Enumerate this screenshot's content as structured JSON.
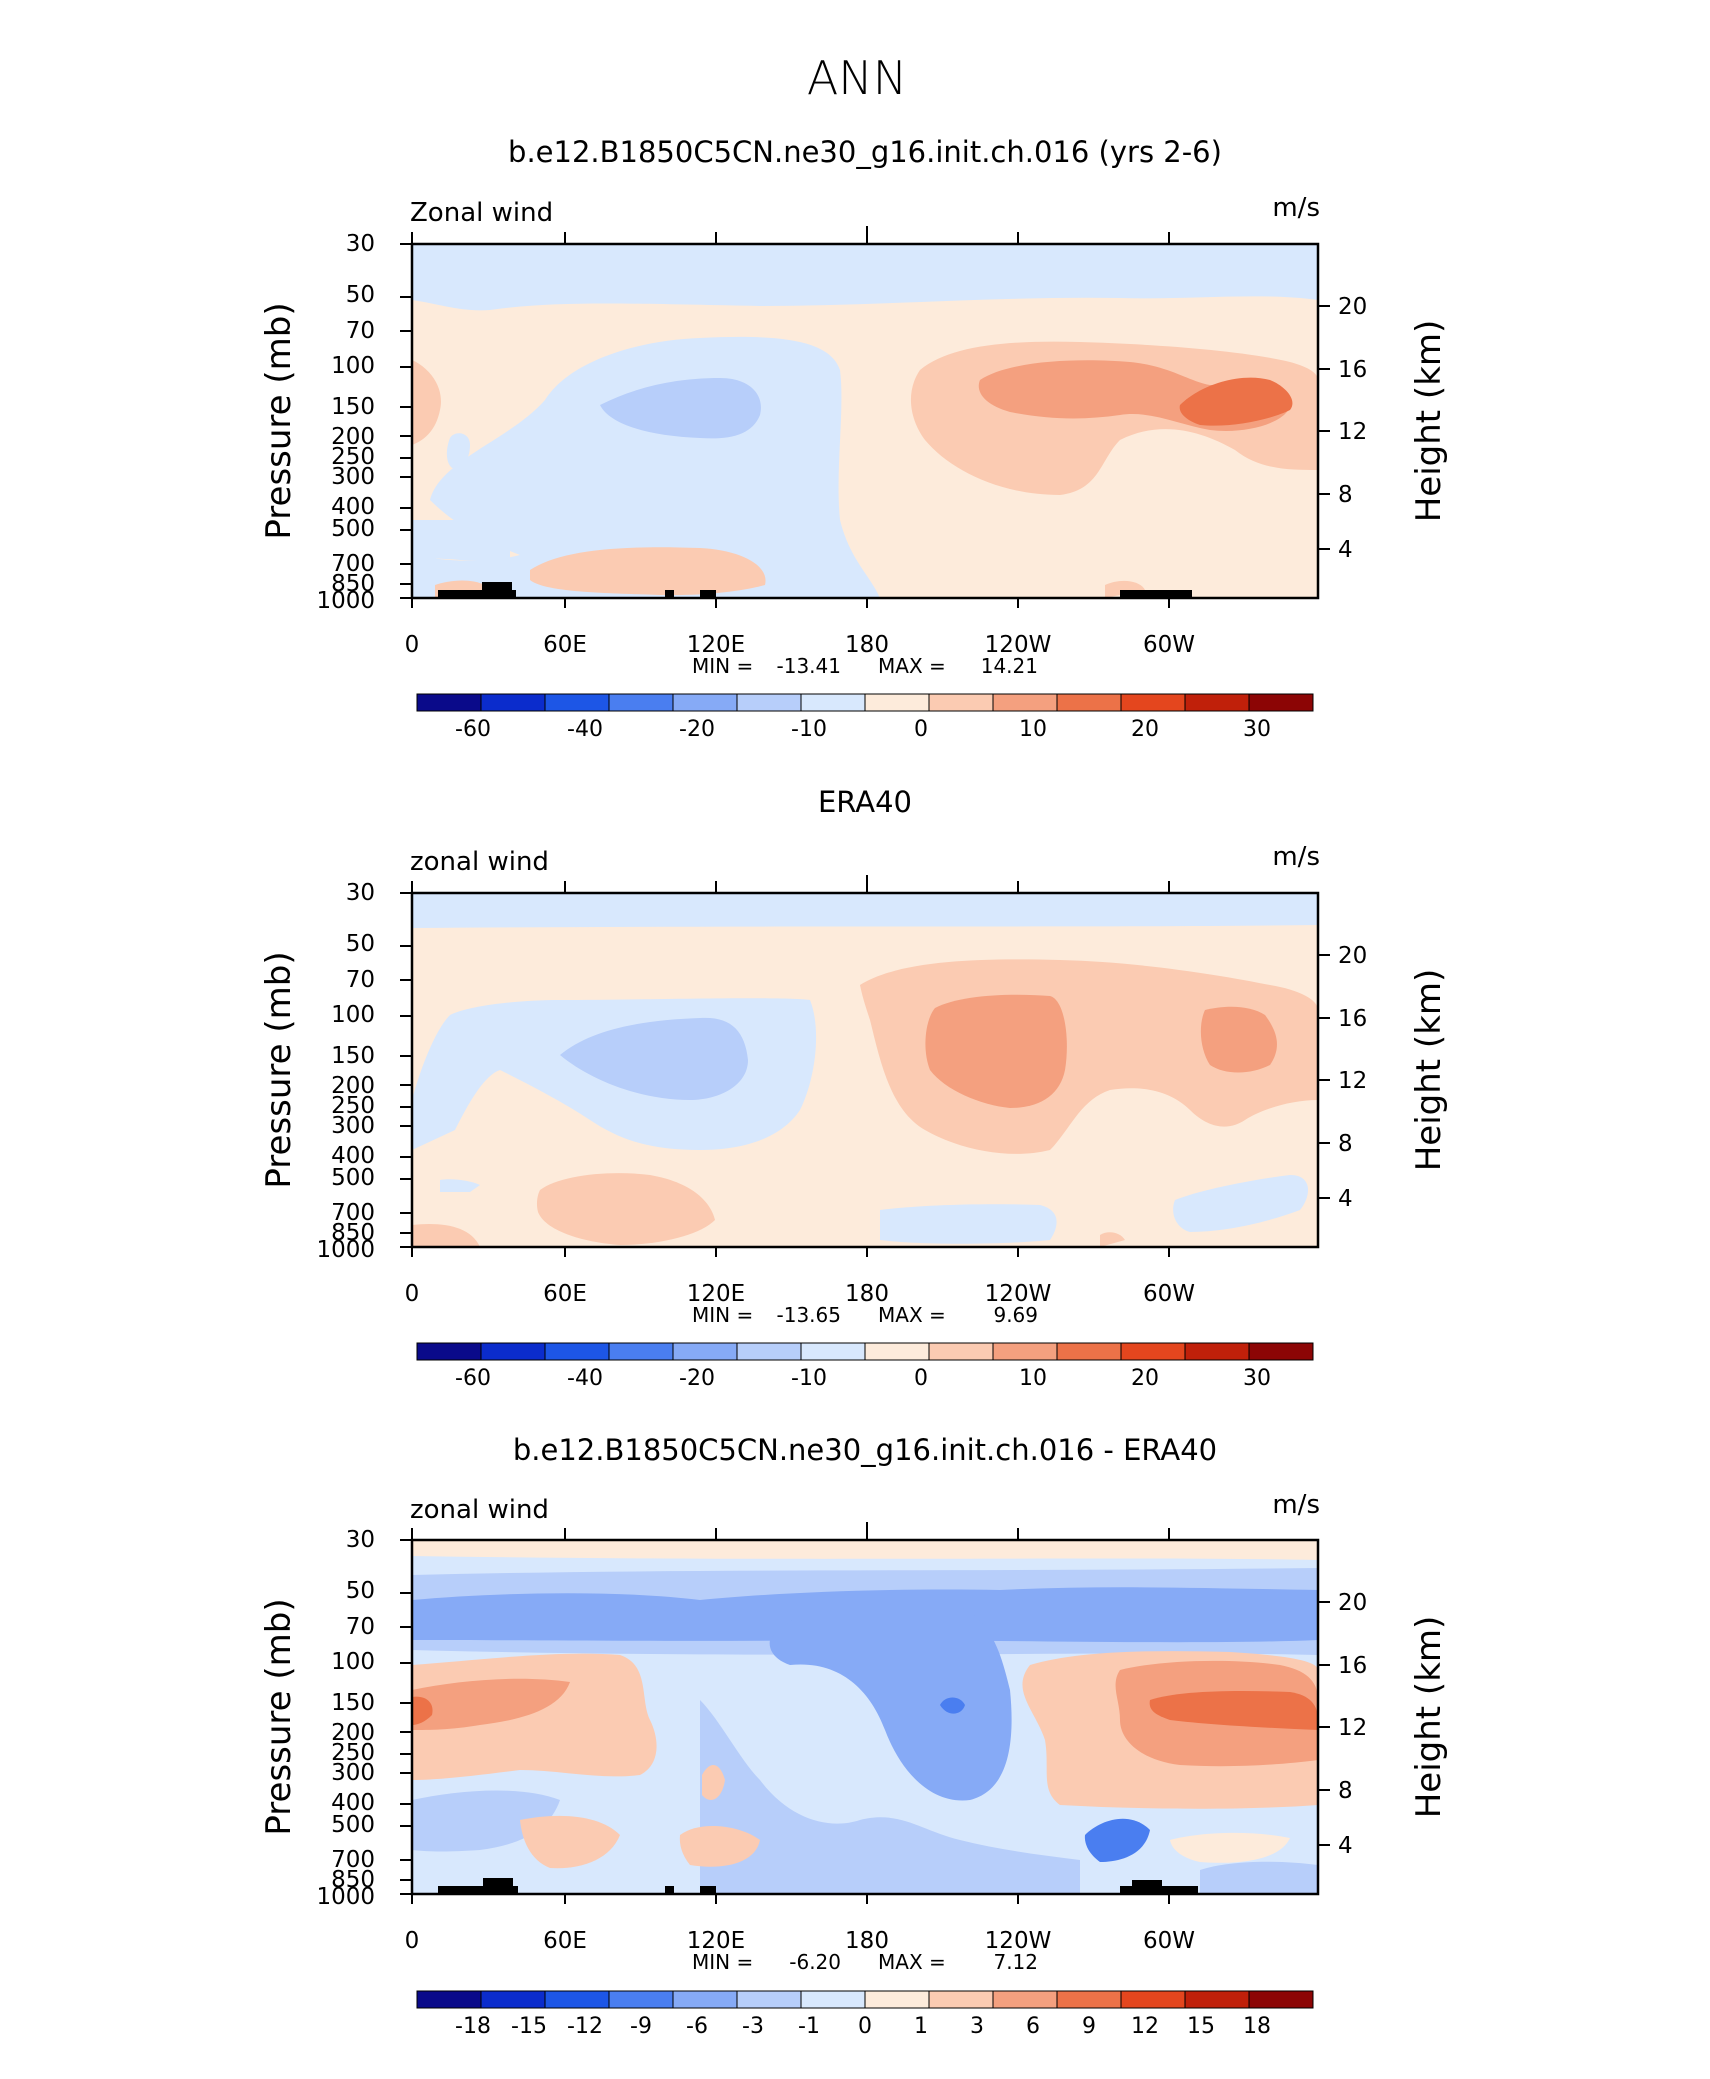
{
  "title": "ANN",
  "colors": {
    "wind_scale": [
      "#0a0a8a",
      "#0b2ccc",
      "#1d56e6",
      "#4a7ef0",
      "#86aaf6",
      "#b7cefa",
      "#d8e8fd",
      "#fdebdb",
      "#fbcbb2",
      "#f4a07f",
      "#ec7248",
      "#e4461e",
      "#c0200a",
      "#8c0505"
    ],
    "diff_scale": [
      "#0a0a8a",
      "#0b2ccc",
      "#1d56e6",
      "#4a7ef0",
      "#86aaf6",
      "#b7cefa",
      "#d8e8fd",
      "#fdebdb",
      "#fbcbb2",
      "#f4a07f",
      "#ec7248",
      "#e4461e",
      "#c0200a",
      "#8c0505"
    ],
    "topography": "#000000"
  },
  "chart_data": [
    {
      "type": "heatmap",
      "title": "b.e12.B1850C5CN.ne30_g16.init.ch.016 (yrs 2-6)",
      "left_label": "Zonal wind",
      "right_label": "m/s",
      "ylabel": "Pressure (mb)",
      "y2label": "Height (km)",
      "xticks": [
        "0",
        "60E",
        "120E",
        "180",
        "120W",
        "60W"
      ],
      "yticks": [
        "30",
        "50",
        "70",
        "100",
        "150",
        "200",
        "250",
        "300",
        "400",
        "500",
        "700",
        "850",
        "1000"
      ],
      "y2ticks": [
        "20",
        "16",
        "12",
        "8",
        "4"
      ],
      "stats": {
        "min_label": "MIN =",
        "min": "-13.41",
        "max_label": "MAX =",
        "max": "14.21"
      },
      "colorbar_labels": [
        "-60",
        "-40",
        "-20",
        "-10",
        "0",
        "10",
        "20",
        "30"
      ]
    },
    {
      "type": "heatmap",
      "title": "ERA40",
      "left_label": "zonal wind",
      "right_label": "m/s",
      "ylabel": "Pressure (mb)",
      "y2label": "Height (km)",
      "xticks": [
        "0",
        "60E",
        "120E",
        "180",
        "120W",
        "60W"
      ],
      "yticks": [
        "30",
        "50",
        "70",
        "100",
        "150",
        "200",
        "250",
        "300",
        "400",
        "500",
        "700",
        "850",
        "1000"
      ],
      "y2ticks": [
        "20",
        "16",
        "12",
        "8",
        "4"
      ],
      "stats": {
        "min_label": "MIN =",
        "min": "-13.65",
        "max_label": "MAX =",
        "max": "9.69"
      },
      "colorbar_labels": [
        "-60",
        "-40",
        "-20",
        "-10",
        "0",
        "10",
        "20",
        "30"
      ]
    },
    {
      "type": "heatmap",
      "title": "b.e12.B1850C5CN.ne30_g16.init.ch.016 - ERA40",
      "left_label": "zonal wind",
      "right_label": "m/s",
      "ylabel": "Pressure (mb)",
      "y2label": "Height (km)",
      "xticks": [
        "0",
        "60E",
        "120E",
        "180",
        "120W",
        "60W"
      ],
      "yticks": [
        "30",
        "50",
        "70",
        "100",
        "150",
        "200",
        "250",
        "300",
        "400",
        "500",
        "700",
        "850",
        "1000"
      ],
      "y2ticks": [
        "20",
        "16",
        "12",
        "8",
        "4"
      ],
      "stats": {
        "min_label": "MIN =",
        "min": "-6.20",
        "max_label": "MAX =",
        "max": "7.12"
      },
      "colorbar_labels": [
        "-18",
        "-15",
        "-12",
        "-9",
        "-6",
        "-3",
        "-1",
        "0",
        "1",
        "3",
        "6",
        "9",
        "12",
        "15",
        "18"
      ]
    }
  ]
}
